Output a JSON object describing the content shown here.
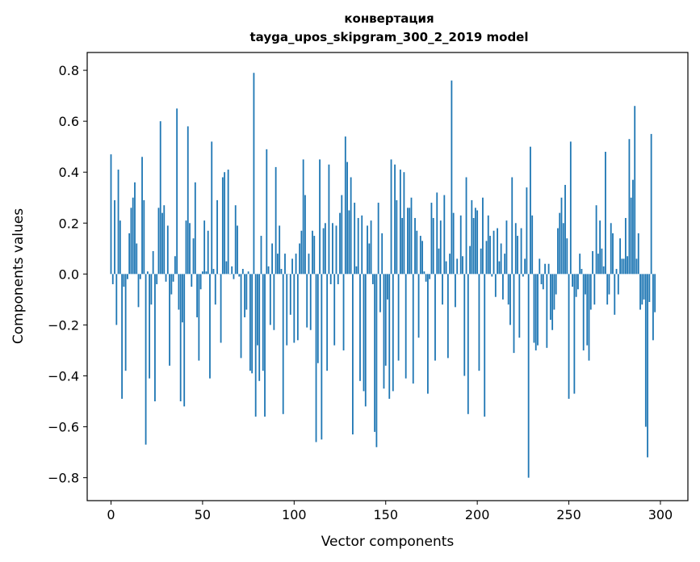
{
  "chart_data": {
    "type": "bar",
    "title_line1": "конвертация",
    "title_line2": "tayga_upos_skipgram_300_2_2019 model",
    "xlabel": "Vector components",
    "ylabel": "Components values",
    "xlim": [
      -13,
      315
    ],
    "ylim": [
      -0.89,
      0.87
    ],
    "xticks": [
      0,
      50,
      100,
      150,
      200,
      250,
      300
    ],
    "yticks": [
      -0.8,
      -0.6,
      -0.4,
      -0.2,
      0.0,
      0.2,
      0.4,
      0.6,
      0.8
    ],
    "ytick_labels": [
      "−0.8",
      "−0.6",
      "−0.4",
      "−0.2",
      "0.0",
      "0.2",
      "0.4",
      "0.6",
      "0.8"
    ],
    "bar_color": "#1f77b4",
    "grid": false,
    "values": [
      0.47,
      -0.04,
      0.29,
      -0.2,
      0.41,
      0.21,
      -0.49,
      -0.05,
      -0.38,
      -0.02,
      0.16,
      0.26,
      0.3,
      0.36,
      0.12,
      -0.13,
      -0.02,
      0.46,
      0.29,
      -0.67,
      0.01,
      -0.41,
      -0.12,
      0.09,
      -0.5,
      -0.04,
      0.26,
      0.6,
      0.24,
      0.27,
      -0.03,
      0.19,
      -0.36,
      -0.08,
      -0.03,
      0.07,
      0.65,
      -0.14,
      -0.5,
      -0.19,
      -0.52,
      0.21,
      0.58,
      0.2,
      -0.05,
      0.14,
      0.36,
      -0.17,
      -0.34,
      -0.06,
      0.01,
      0.21,
      0.01,
      0.17,
      -0.41,
      0.52,
      0.02,
      -0.12,
      0.29,
      0.0,
      -0.27,
      0.38,
      0.4,
      0.05,
      0.41,
      0.0,
      0.03,
      -0.02,
      0.27,
      0.19,
      -0.01,
      -0.33,
      0.02,
      -0.17,
      -0.14,
      0.01,
      -0.38,
      -0.39,
      0.79,
      -0.56,
      -0.28,
      -0.42,
      0.15,
      -0.38,
      -0.56,
      0.49,
      0.03,
      -0.2,
      0.12,
      -0.22,
      0.42,
      0.08,
      0.19,
      0.02,
      -0.55,
      0.08,
      -0.28,
      0.0,
      -0.16,
      0.06,
      -0.27,
      0.08,
      -0.26,
      0.12,
      0.17,
      0.45,
      0.31,
      -0.21,
      0.08,
      -0.22,
      0.17,
      0.15,
      -0.66,
      -0.35,
      0.45,
      -0.65,
      0.18,
      0.2,
      -0.38,
      0.43,
      -0.04,
      0.2,
      -0.28,
      0.19,
      -0.04,
      0.24,
      0.31,
      -0.3,
      0.54,
      0.44,
      0.25,
      0.38,
      -0.63,
      0.28,
      0.03,
      0.22,
      -0.42,
      0.23,
      -0.46,
      -0.52,
      0.19,
      0.12,
      0.21,
      -0.04,
      -0.62,
      -0.68,
      0.28,
      -0.15,
      0.16,
      -0.45,
      -0.36,
      -0.1,
      -0.49,
      0.45,
      -0.46,
      0.43,
      0.29,
      -0.34,
      0.41,
      0.22,
      0.4,
      -0.41,
      0.26,
      0.26,
      0.3,
      -0.43,
      0.22,
      0.17,
      -0.25,
      0.15,
      0.13,
      0.01,
      -0.03,
      -0.47,
      -0.02,
      0.28,
      0.22,
      -0.34,
      0.32,
      0.1,
      0.21,
      -0.12,
      0.31,
      0.05,
      -0.33,
      0.08,
      0.76,
      0.24,
      -0.13,
      0.06,
      0.0,
      0.23,
      0.07,
      -0.4,
      0.38,
      -0.55,
      0.11,
      0.29,
      0.22,
      0.26,
      0.25,
      -0.38,
      0.1,
      0.3,
      -0.56,
      0.13,
      0.23,
      0.15,
      -0.01,
      0.17,
      -0.09,
      0.18,
      0.05,
      0.12,
      -0.1,
      0.08,
      0.21,
      -0.12,
      -0.2,
      0.38,
      -0.31,
      0.2,
      0.15,
      -0.25,
      0.18,
      -0.01,
      0.06,
      0.34,
      -0.8,
      0.5,
      0.23,
      -0.27,
      -0.3,
      -0.28,
      0.06,
      -0.04,
      -0.06,
      0.04,
      -0.29,
      0.04,
      -0.18,
      -0.22,
      -0.14,
      -0.08,
      0.18,
      0.24,
      0.3,
      0.2,
      0.35,
      0.14,
      -0.49,
      0.52,
      -0.05,
      -0.47,
      -0.09,
      -0.06,
      0.08,
      0.02,
      -0.3,
      -0.08,
      -0.28,
      -0.34,
      -0.14,
      0.09,
      -0.12,
      0.27,
      0.08,
      0.21,
      0.1,
      0.03,
      0.48,
      -0.12,
      -0.08,
      0.2,
      0.16,
      -0.16,
      0.02,
      -0.08,
      0.14,
      0.06,
      0.06,
      0.22,
      0.07,
      0.53,
      0.3,
      0.37,
      0.66,
      0.06,
      0.16,
      -0.14,
      -0.12,
      -0.1,
      -0.6,
      -0.72,
      -0.11,
      0.55,
      -0.26,
      -0.15
    ]
  }
}
